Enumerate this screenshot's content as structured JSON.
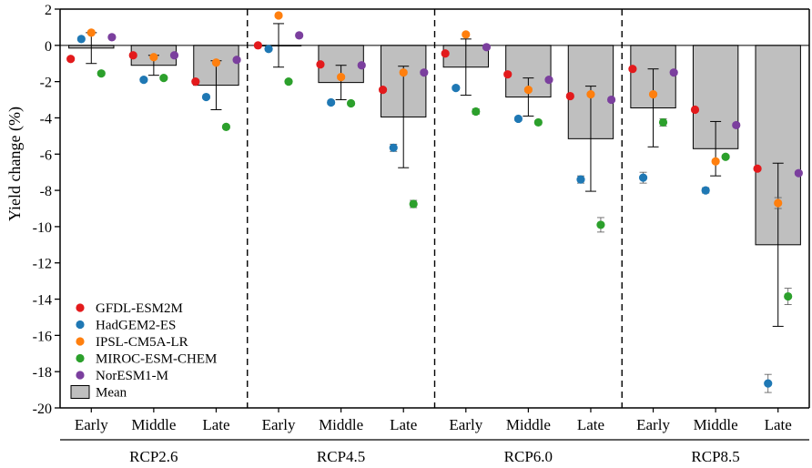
{
  "chart_data": {
    "type": "bar",
    "ylabel": "Yield change (%)",
    "ylim": [
      -20,
      2
    ],
    "yticks": [
      2,
      0,
      -2,
      -4,
      -6,
      -8,
      -10,
      -12,
      -14,
      -16,
      -18,
      -20
    ],
    "groups": [
      "RCP2.6",
      "RCP4.5",
      "RCP6.0",
      "RCP8.5"
    ],
    "periods": [
      "Early",
      "Middle",
      "Late"
    ],
    "mean": {
      "name": "Mean",
      "values": [
        -0.15,
        -1.1,
        -2.2,
        0.0,
        -2.05,
        -3.95,
        -1.2,
        -2.85,
        -5.15,
        -3.45,
        -5.7,
        -11.0
      ],
      "error": [
        0.85,
        0.55,
        1.35,
        1.2,
        0.95,
        2.8,
        1.55,
        1.05,
        2.9,
        2.15,
        1.5,
        4.5
      ]
    },
    "series": [
      {
        "name": "GFDL-ESM2M",
        "color": "#e31a1c",
        "values": [
          -0.75,
          -0.55,
          -2.0,
          0.0,
          -1.05,
          -2.45,
          -0.45,
          -1.6,
          -2.8,
          -1.3,
          -3.55,
          -6.8
        ],
        "error": [
          0.1,
          0.1,
          0.1,
          0.1,
          0.1,
          0.1,
          0.1,
          0.1,
          0.1,
          0.1,
          0.1,
          0.1
        ]
      },
      {
        "name": "HadGEM2-ES",
        "color": "#1f78b4",
        "values": [
          0.35,
          -1.9,
          -2.85,
          -0.2,
          -3.15,
          -5.65,
          -2.35,
          -4.05,
          -7.4,
          -7.3,
          -8.0,
          -18.65
        ],
        "error": [
          0.1,
          0.1,
          0.1,
          0.1,
          0.1,
          0.2,
          0.1,
          0.1,
          0.2,
          0.3,
          0.15,
          0.5
        ]
      },
      {
        "name": "IPSL-CM5A-LR",
        "color": "#ff7f0e",
        "values": [
          0.7,
          -0.65,
          -0.95,
          1.65,
          -1.75,
          -1.5,
          0.6,
          -2.45,
          -2.7,
          -2.7,
          -6.4,
          -8.7
        ],
        "error": [
          0.1,
          0.1,
          0.1,
          0.1,
          0.1,
          0.1,
          0.1,
          0.1,
          0.1,
          0.1,
          0.1,
          0.3
        ]
      },
      {
        "name": "MIROC-ESM-CHEM",
        "color": "#2ca02c",
        "values": [
          -1.55,
          -1.8,
          -4.5,
          -2.0,
          -3.2,
          -8.75,
          -3.65,
          -4.25,
          -9.9,
          -4.25,
          -6.15,
          -13.85
        ],
        "error": [
          0.1,
          0.1,
          0.1,
          0.1,
          0.1,
          0.2,
          0.15,
          0.1,
          0.4,
          0.2,
          0.1,
          0.45
        ]
      },
      {
        "name": "NorESM1-M",
        "color": "#7b3f9e",
        "values": [
          0.45,
          -0.55,
          -0.8,
          0.55,
          -1.1,
          -1.5,
          -0.1,
          -1.9,
          -3.0,
          -1.5,
          -4.4,
          -7.05
        ],
        "error": [
          0.1,
          0.1,
          0.1,
          0.1,
          0.1,
          0.1,
          0.1,
          0.1,
          0.1,
          0.1,
          0.1,
          0.1
        ]
      }
    ],
    "legend": [
      "GFDL-ESM2M",
      "HadGEM2-ES",
      "IPSL-CM5A-LR",
      "MIROC-ESM-CHEM",
      "NorESM1-M",
      "Mean"
    ],
    "legend_placement": "bottom-left",
    "bar_color": "#bfbfbf",
    "grid": false
  }
}
